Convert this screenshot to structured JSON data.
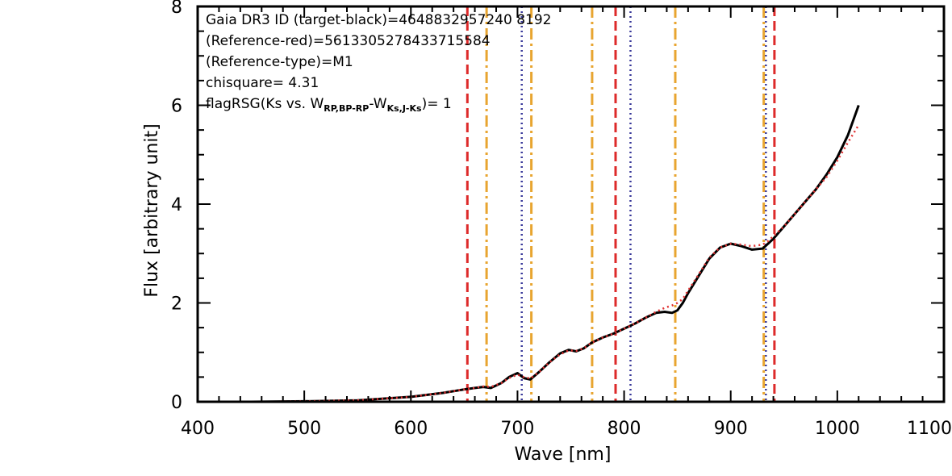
{
  "chart_data": {
    "type": "line",
    "xlabel": "Wave [nm]",
    "ylabel": "Flux [arbitrary unit]",
    "xlim": [
      400,
      1100
    ],
    "ylim": [
      0,
      8
    ],
    "x_ticks": [
      "400",
      "500",
      "600",
      "700",
      "800",
      "900",
      "1000",
      "1100"
    ],
    "y_ticks": [
      "0",
      "2",
      "4",
      "6",
      "8"
    ],
    "grid": false,
    "annotations": {
      "line1": "Gaia DR3 ID (target-black)=4648832957240 8192",
      "line2": "(Reference-red)=5613305278433715584",
      "line3": "(Reference-type)=M1",
      "line4": "chisquare= 4.31",
      "line5_prefix": "flagRSG(Ks vs. W",
      "line5_sub1": "RP,BP-RP",
      "line5_mid": "-W",
      "line5_sub2": "Ks,J-Ks",
      "line5_suffix": ")= 1"
    },
    "series": [
      {
        "color": "#000000",
        "style": "solid",
        "x": [
          400,
          450,
          500,
          550,
          600,
          630,
          650,
          660,
          668,
          675,
          685,
          692,
          700,
          706,
          712,
          720,
          730,
          740,
          748,
          755,
          762,
          770,
          780,
          790,
          800,
          810,
          820,
          830,
          838,
          845,
          850,
          855,
          860,
          870,
          880,
          890,
          900,
          910,
          920,
          930,
          935,
          940,
          950,
          960,
          970,
          980,
          990,
          1000,
          1010,
          1020
        ],
        "y": [
          0.0,
          0.0,
          0.01,
          0.03,
          0.1,
          0.18,
          0.25,
          0.28,
          0.3,
          0.28,
          0.38,
          0.5,
          0.58,
          0.48,
          0.45,
          0.6,
          0.8,
          0.98,
          1.05,
          1.02,
          1.08,
          1.2,
          1.3,
          1.38,
          1.48,
          1.58,
          1.7,
          1.8,
          1.82,
          1.8,
          1.85,
          2.0,
          2.2,
          2.55,
          2.9,
          3.12,
          3.2,
          3.15,
          3.08,
          3.1,
          3.2,
          3.3,
          3.55,
          3.8,
          4.05,
          4.3,
          4.6,
          4.95,
          5.4,
          6.0
        ]
      },
      {
        "color": "#e03030",
        "style": "dotted",
        "x": [
          400,
          450,
          500,
          550,
          600,
          630,
          650,
          660,
          668,
          675,
          685,
          692,
          700,
          706,
          712,
          720,
          730,
          740,
          748,
          755,
          762,
          770,
          780,
          790,
          800,
          810,
          820,
          830,
          838,
          845,
          850,
          855,
          860,
          870,
          880,
          890,
          900,
          910,
          920,
          930,
          935,
          940,
          950,
          960,
          970,
          980,
          990,
          1000,
          1010,
          1020
        ],
        "y": [
          0.0,
          0.0,
          0.01,
          0.03,
          0.1,
          0.18,
          0.25,
          0.28,
          0.31,
          0.3,
          0.38,
          0.48,
          0.55,
          0.5,
          0.47,
          0.6,
          0.8,
          0.96,
          1.04,
          1.03,
          1.08,
          1.2,
          1.3,
          1.38,
          1.48,
          1.58,
          1.7,
          1.82,
          1.9,
          1.95,
          2.0,
          2.08,
          2.25,
          2.58,
          2.92,
          3.12,
          3.2,
          3.18,
          3.15,
          3.18,
          3.25,
          3.35,
          3.55,
          3.8,
          4.05,
          4.3,
          4.55,
          4.88,
          5.25,
          5.6
        ]
      }
    ],
    "vlines": [
      {
        "x": 653,
        "color": "#dd2a2a",
        "style": "dashed"
      },
      {
        "x": 671,
        "color": "#e8a530",
        "style": "dashdot"
      },
      {
        "x": 704,
        "color": "#3a3a9a",
        "style": "dotted"
      },
      {
        "x": 713,
        "color": "#e8a530",
        "style": "dashdot"
      },
      {
        "x": 770,
        "color": "#e8a530",
        "style": "dashdot"
      },
      {
        "x": 792,
        "color": "#dd2a2a",
        "style": "dashed"
      },
      {
        "x": 806,
        "color": "#3a3a9a",
        "style": "dotted"
      },
      {
        "x": 848,
        "color": "#e8a530",
        "style": "dashdot"
      },
      {
        "x": 931,
        "color": "#e8a530",
        "style": "dashdot"
      },
      {
        "x": 933,
        "color": "#3a3a9a",
        "style": "dotted"
      },
      {
        "x": 941,
        "color": "#dd2a2a",
        "style": "dashed"
      }
    ]
  }
}
